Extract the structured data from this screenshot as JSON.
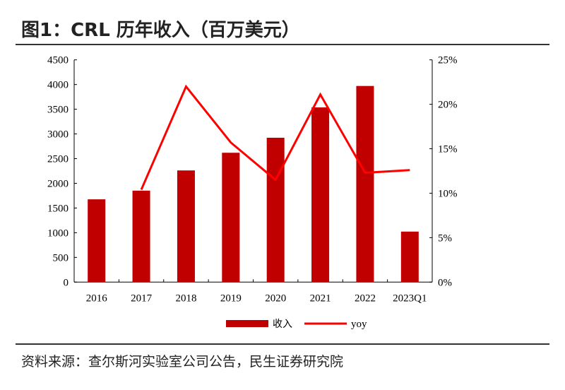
{
  "title": "图1：CRL 历年收入（百万美元）",
  "source": "资料来源：查尔斯河实验室公司公告，民生证券研究院",
  "chart_data": {
    "type": "bar",
    "title": "图1：CRL 历年收入（百万美元）",
    "categories": [
      "2016",
      "2017",
      "2018",
      "2019",
      "2020",
      "2021",
      "2022",
      "2023Q1"
    ],
    "series": [
      {
        "name": "收入",
        "type": "bar",
        "axis": "left",
        "color": "#C00000",
        "values": [
          1676,
          1852,
          2261,
          2619,
          2923,
          3537,
          3971,
          1023
        ]
      },
      {
        "name": "yoy",
        "type": "line",
        "axis": "right",
        "color": "#FF0000",
        "values": [
          null,
          10.4,
          22.0,
          15.7,
          11.5,
          21.1,
          12.3,
          12.6
        ]
      }
    ],
    "ylim": [
      0,
      4500
    ],
    "yticks": [
      0,
      500,
      1000,
      1500,
      2000,
      2500,
      3000,
      3500,
      4000,
      4500
    ],
    "y2lim": [
      0,
      25
    ],
    "y2ticks": [
      "0%",
      "5%",
      "10%",
      "15%",
      "20%",
      "25%"
    ],
    "legend": "bottom",
    "grid": false
  }
}
